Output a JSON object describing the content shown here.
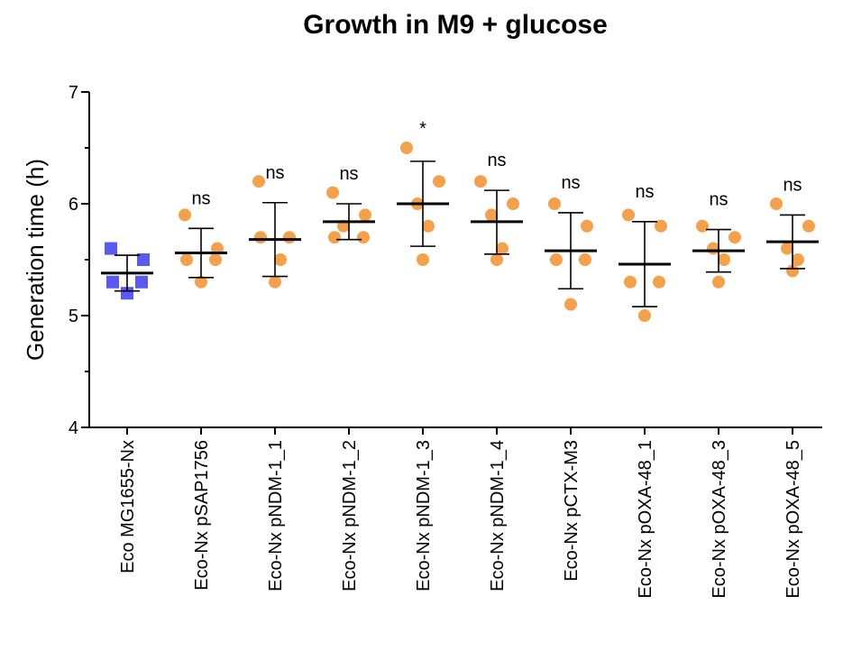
{
  "chart_data": {
    "type": "scatter",
    "title": "Growth in M9 + glucose",
    "xlabel": "",
    "ylabel": "Generation time (h)",
    "ylim": [
      4,
      7
    ],
    "yticks": [
      4,
      5,
      6,
      7
    ],
    "colors": {
      "reference": "#5a5af0",
      "plasmid": "#f5a04a",
      "ink": "#000000"
    },
    "groups": [
      {
        "label": "Eco MG1655-Nx",
        "marker": "square",
        "values": [
          5.6,
          5.5,
          5.3,
          5.3,
          5.2
        ],
        "mean": 5.38,
        "sd_low": 5.22,
        "sd_high": 5.54,
        "annotation": ""
      },
      {
        "label": "Eco-Nx pSAP1756",
        "marker": "circle",
        "values": [
          5.9,
          5.6,
          5.5,
          5.5,
          5.3
        ],
        "mean": 5.56,
        "sd_low": 5.34,
        "sd_high": 5.78,
        "annotation": "ns"
      },
      {
        "label": "Eco-Nx pNDM-1_1",
        "marker": "circle",
        "values": [
          6.2,
          5.7,
          5.7,
          5.5,
          5.3
        ],
        "mean": 5.68,
        "sd_low": 5.35,
        "sd_high": 6.01,
        "annotation": "ns"
      },
      {
        "label": "Eco-Nx pNDM-1_2",
        "marker": "circle",
        "values": [
          6.1,
          5.9,
          5.8,
          5.7,
          5.7
        ],
        "mean": 5.84,
        "sd_low": 5.68,
        "sd_high": 6.0,
        "annotation": "ns"
      },
      {
        "label": "Eco-Nx pNDM-1_3",
        "marker": "circle",
        "values": [
          6.5,
          6.2,
          6.0,
          5.8,
          5.5
        ],
        "mean": 6.0,
        "sd_low": 5.62,
        "sd_high": 6.38,
        "annotation": "*"
      },
      {
        "label": "Eco-Nx pNDM-1_4",
        "marker": "circle",
        "values": [
          6.2,
          6.0,
          5.9,
          5.6,
          5.5
        ],
        "mean": 5.84,
        "sd_low": 5.55,
        "sd_high": 6.12,
        "annotation": "ns"
      },
      {
        "label": "Eco-Nx pCTX-M3",
        "marker": "circle",
        "values": [
          6.0,
          5.8,
          5.5,
          5.5,
          5.1
        ],
        "mean": 5.58,
        "sd_low": 5.24,
        "sd_high": 5.92,
        "annotation": "ns"
      },
      {
        "label": "Eco-Nx pOXA-48_1",
        "marker": "circle",
        "values": [
          5.9,
          5.8,
          5.3,
          5.3,
          5.0
        ],
        "mean": 5.46,
        "sd_low": 5.08,
        "sd_high": 5.84,
        "annotation": "ns"
      },
      {
        "label": "Eco-Nx pOXA-48_3",
        "marker": "circle",
        "values": [
          5.8,
          5.7,
          5.6,
          5.5,
          5.3
        ],
        "mean": 5.58,
        "sd_low": 5.39,
        "sd_high": 5.77,
        "annotation": "ns"
      },
      {
        "label": "Eco-Nx pOXA-48_5",
        "marker": "circle",
        "values": [
          6.0,
          5.8,
          5.6,
          5.5,
          5.4
        ],
        "mean": 5.66,
        "sd_low": 5.42,
        "sd_high": 5.9,
        "annotation": "ns"
      }
    ]
  }
}
